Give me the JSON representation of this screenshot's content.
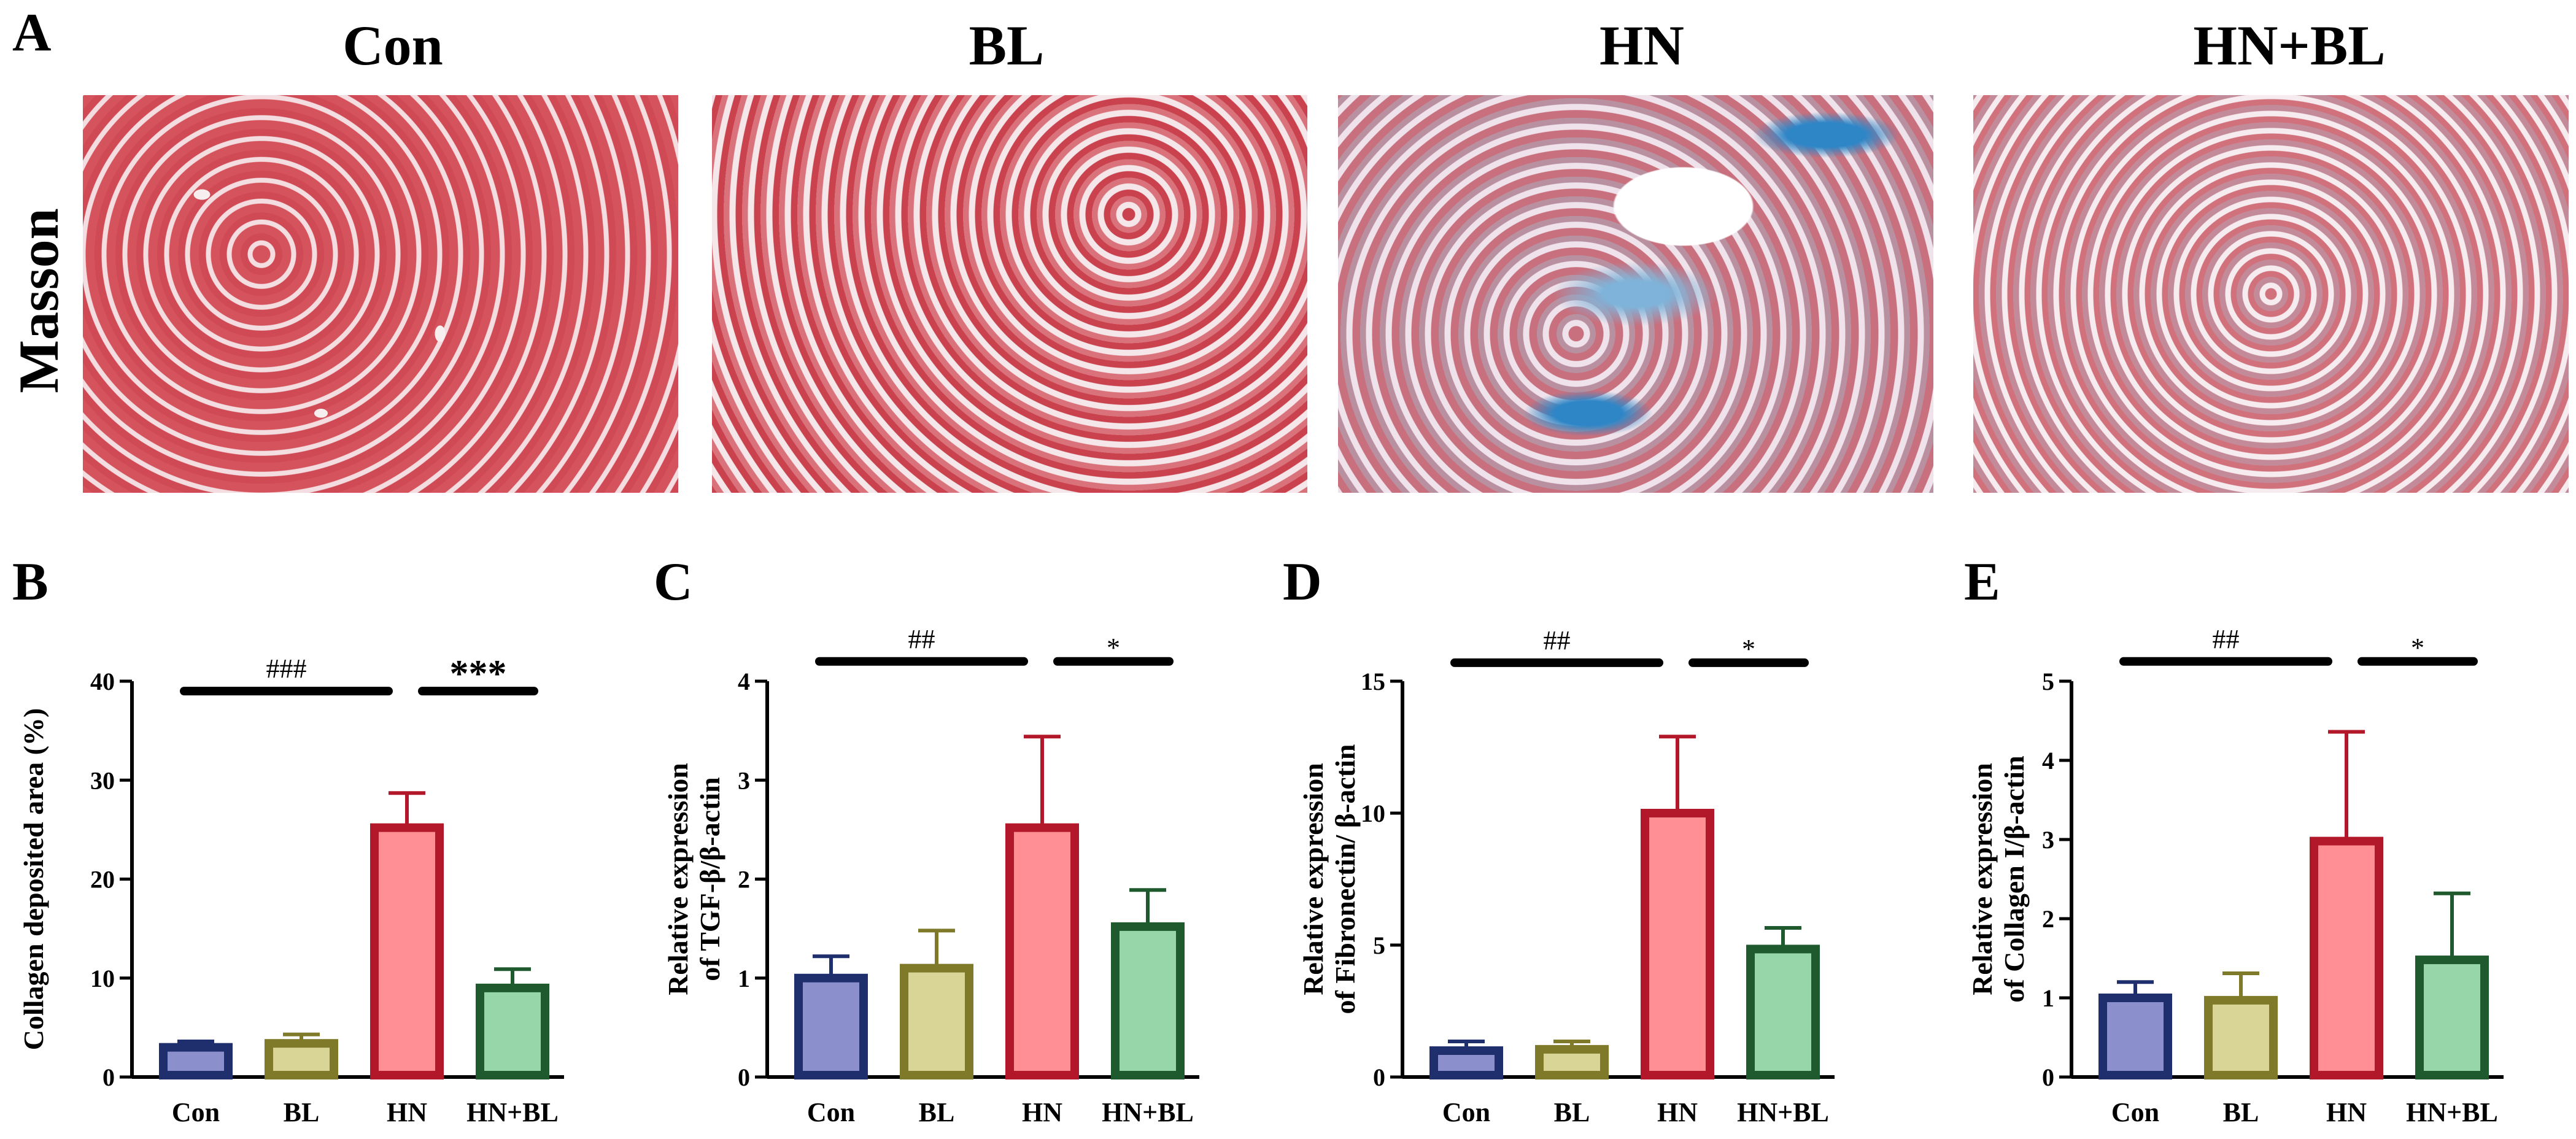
{
  "panel_letters": {
    "A": "A",
    "B": "B",
    "C": "C",
    "D": "D",
    "E": "E"
  },
  "groups": [
    "Con",
    "BL",
    "HN",
    "HN+BL"
  ],
  "stain_label": "Masson",
  "colors": {
    "Con": {
      "fill": "#8b8fcb",
      "edge": "#1f2f6e"
    },
    "BL": {
      "fill": "#d8d597",
      "edge": "#7e7a2a"
    },
    "HN": {
      "fill": "#ff8f94",
      "edge": "#b3182a"
    },
    "HN+BL": {
      "fill": "#97d6a8",
      "edge": "#1f5a2e"
    }
  },
  "chart_data": [
    {
      "type": "bar",
      "panel": "B",
      "categories": [
        "Con",
        "BL",
        "HN",
        "HN+BL"
      ],
      "values": [
        3.0,
        3.4,
        25.2,
        9.0
      ],
      "errors": [
        0.6,
        0.9,
        3.5,
        1.9
      ],
      "ylabel_lines": [
        "Collagen deposited area (%)"
      ],
      "ylim": [
        0,
        40
      ],
      "yticks": [
        "0",
        "10",
        "20",
        "30",
        "40"
      ],
      "significance": [
        {
          "from": 0,
          "to": 2,
          "label": "###",
          "level": 39
        },
        {
          "from": 2,
          "to": 3,
          "label": "***",
          "level": 39
        }
      ]
    },
    {
      "type": "bar",
      "panel": "C",
      "categories": [
        "Con",
        "BL",
        "HN",
        "HN+BL"
      ],
      "values": [
        1.0,
        1.1,
        2.52,
        1.52
      ],
      "errors": [
        0.22,
        0.38,
        0.92,
        0.37
      ],
      "ylabel_lines": [
        "Relative expression",
        "of TGF-β/β-actin"
      ],
      "ylim": [
        0,
        4
      ],
      "yticks": [
        "0",
        "1",
        "2",
        "3",
        "4"
      ],
      "significance": [
        {
          "from": 0,
          "to": 2,
          "label": "##",
          "level": 4.2
        },
        {
          "from": 2,
          "to": 3,
          "label": "*",
          "level": 4.2
        }
      ]
    },
    {
      "type": "bar",
      "panel": "D",
      "categories": [
        "Con",
        "BL",
        "HN",
        "HN+BL"
      ],
      "values": [
        1.0,
        1.05,
        10.0,
        4.85
      ],
      "errors": [
        0.35,
        0.3,
        2.9,
        0.8
      ],
      "ylabel_lines": [
        "Relative expression",
        "of Fibronectin/ β-actin"
      ],
      "ylim": [
        0,
        15
      ],
      "yticks": [
        "0",
        "5",
        "10",
        "15"
      ],
      "significance": [
        {
          "from": 0,
          "to": 2,
          "label": "##",
          "level": 15.7
        },
        {
          "from": 2,
          "to": 3,
          "label": "*",
          "level": 15.7
        }
      ]
    },
    {
      "type": "bar",
      "panel": "E",
      "categories": [
        "Con",
        "BL",
        "HN",
        "HN+BL"
      ],
      "values": [
        1.0,
        0.97,
        2.98,
        1.48
      ],
      "errors": [
        0.2,
        0.34,
        1.38,
        0.84
      ],
      "ylabel_lines": [
        "Relative expression",
        "of Collagen I/β-actin"
      ],
      "ylim": [
        0,
        5
      ],
      "yticks": [
        "0",
        "1",
        "2",
        "3",
        "4",
        "5"
      ],
      "significance": [
        {
          "from": 0,
          "to": 2,
          "label": "##",
          "level": 5.25
        },
        {
          "from": 2,
          "to": 3,
          "label": "*",
          "level": 5.25
        }
      ]
    }
  ]
}
